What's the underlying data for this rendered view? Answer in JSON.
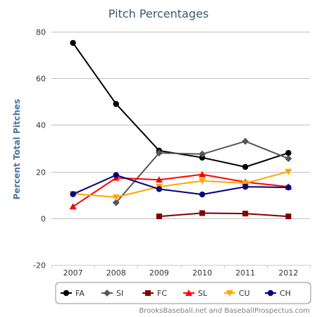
{
  "chart_data": {
    "type": "line",
    "title": "Pitch Percentages",
    "ylabel": "Percent Total Pitches",
    "xlabel": "",
    "categories": [
      "2007",
      "2008",
      "2009",
      "2010",
      "2011",
      "2012"
    ],
    "ylim": [
      -20,
      80
    ],
    "yticks": [
      -20,
      0,
      20,
      40,
      60,
      80
    ],
    "grid": true,
    "legend": "bottom",
    "credit": "BrooksBaseball.net and BaseballProspectus.com",
    "series": [
      {
        "name": "FA",
        "color": "#000000",
        "marker": "circle",
        "values": [
          75.2,
          49.0,
          29.0,
          26.0,
          22.0,
          28.0
        ]
      },
      {
        "name": "SI",
        "color": "#555555",
        "marker": "diamond",
        "values": [
          null,
          6.7,
          28.0,
          27.5,
          33.0,
          25.6
        ]
      },
      {
        "name": "FC",
        "color": "#800000",
        "marker": "square",
        "values": [
          null,
          null,
          0.8,
          2.2,
          2.0,
          0.8
        ]
      },
      {
        "name": "SL",
        "color": "#ff0000",
        "marker": "triangle",
        "values": [
          5.0,
          17.3,
          16.5,
          18.8,
          15.5,
          13.5
        ]
      },
      {
        "name": "CU",
        "color": "#ffa500",
        "marker": "triangle-down",
        "values": [
          10.5,
          9.0,
          13.5,
          16.0,
          15.0,
          20.0
        ]
      },
      {
        "name": "CH",
        "color": "#000080",
        "marker": "circle",
        "values": [
          10.3,
          18.5,
          12.5,
          10.2,
          13.5,
          13.2
        ]
      }
    ]
  }
}
